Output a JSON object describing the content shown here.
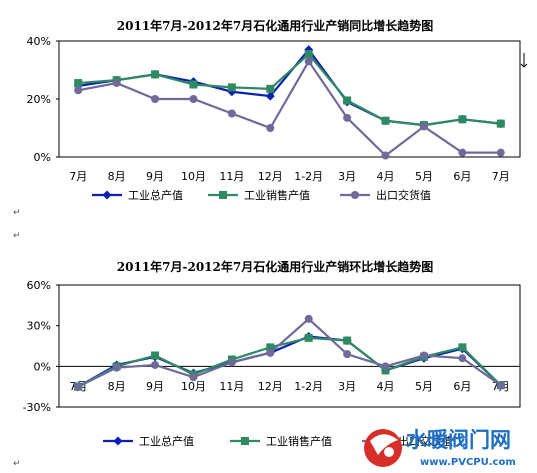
{
  "colors": {
    "industrial_output": "#0b1fb5",
    "sales_output": "#2f8a63",
    "export_delivery": "#6f6a9a",
    "plot_border": "#000000"
  },
  "chart_data": [
    {
      "type": "line",
      "title": "2011年7月-2012年7月石化通用行业产销同比增长趋势图",
      "categories": [
        "7月",
        "8月",
        "9月",
        "10月",
        "11月",
        "12月",
        "1-2月",
        "3月",
        "4月",
        "5月",
        "6月",
        "7月"
      ],
      "y_ticks": [
        "0%",
        "20%",
        "40%"
      ],
      "ylim": [
        0,
        40
      ],
      "grid": false,
      "legend_position": "bottom",
      "series": [
        {
          "name": "工业总产值",
          "marker": "diamond",
          "values": [
            24.5,
            26.5,
            28.5,
            26,
            22.5,
            21,
            37,
            19,
            12.5,
            11,
            13,
            11.5
          ]
        },
        {
          "name": "工业销售产值",
          "marker": "square",
          "values": [
            25.5,
            26.5,
            28.5,
            25,
            24,
            23.5,
            35.5,
            19.5,
            12.5,
            11,
            13,
            11.5
          ]
        },
        {
          "name": "出口交货值",
          "marker": "circle",
          "values": [
            23,
            25.5,
            20,
            20,
            15,
            10,
            33,
            13.5,
            0.5,
            10.5,
            1.5,
            1.5
          ]
        }
      ]
    },
    {
      "type": "line",
      "title": "2011年7月-2012年7月石化通用行业产销环比增长趋势图",
      "categories": [
        "7月",
        "8月",
        "9月",
        "10月",
        "11月",
        "12月",
        "1-2月",
        "3月",
        "4月",
        "5月",
        "6月",
        "7月"
      ],
      "y_ticks": [
        "-30%",
        "0%",
        "30%",
        "60%"
      ],
      "ylim": [
        -30,
        60
      ],
      "grid": false,
      "legend_position": "bottom",
      "series": [
        {
          "name": "工业总产值",
          "marker": "diamond",
          "values": [
            -15,
            1,
            7,
            -5,
            3,
            10,
            22,
            19,
            -3,
            6,
            13,
            -14
          ]
        },
        {
          "name": "工业销售产值",
          "marker": "square",
          "values": [
            -15,
            0,
            8,
            -6,
            5,
            14,
            21,
            19,
            -3,
            7,
            14,
            -14
          ]
        },
        {
          "name": "出口交货值",
          "marker": "circle",
          "values": [
            -15,
            -1,
            1,
            -8,
            3,
            10,
            35,
            9,
            0,
            8,
            6,
            -14
          ]
        }
      ]
    }
  ],
  "watermark": {
    "brand": "水暖阀门网",
    "url": "www.PVCPU.com"
  }
}
